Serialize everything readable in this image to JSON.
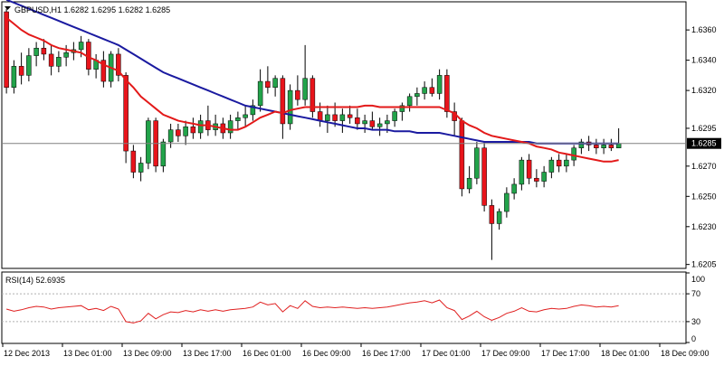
{
  "header": {
    "symbol_line": "GBPUSD,H1  1.6282 1.6295 1.6282 1.6285",
    "dropdown_icon": "triangle-down-icon"
  },
  "rsi_header": "RSI(14) 52.6935",
  "current_price_label": "1.6285",
  "colors": {
    "bull": "#22a34a",
    "bear": "#e8141b",
    "ma_fast": "#e31919",
    "ma_slow": "#1a1aa0",
    "rsi": "#e02020",
    "grid": "#c8c8c8",
    "frame": "#000000"
  },
  "chart_data": {
    "type": "candlestick",
    "symbol": "GBPUSD",
    "timeframe": "H1",
    "price_axis": {
      "range": [
        1.6203,
        1.6378
      ],
      "ticks": [
        "1.6360",
        "1.6340",
        "1.6320",
        "1.6295",
        "1.6270",
        "1.6250",
        "1.6230",
        "1.6205"
      ],
      "tick_values": [
        1.636,
        1.634,
        1.632,
        1.6295,
        1.627,
        1.625,
        1.623,
        1.6205
      ]
    },
    "time_axis": {
      "labels": [
        "12 Dec 2013",
        "13 Dec 01:00",
        "13 Dec 09:00",
        "13 Dec 17:00",
        "16 Dec 01:00",
        "16 Dec 09:00",
        "16 Dec 17:00",
        "17 Dec 01:00",
        "17 Dec 09:00",
        "17 Dec 17:00",
        "18 Dec 01:00",
        "18 Dec 09:00"
      ],
      "label_bar_index": [
        0,
        8,
        16,
        24,
        32,
        40,
        48,
        56,
        64,
        72,
        80,
        88
      ]
    },
    "last_price": 1.6285,
    "candles": [
      [
        1.6372,
        1.6374,
        1.6318,
        1.6322
      ],
      [
        1.6322,
        1.634,
        1.6318,
        1.6336
      ],
      [
        1.6336,
        1.6345,
        1.6324,
        1.633
      ],
      [
        1.633,
        1.6348,
        1.6326,
        1.6343
      ],
      [
        1.6343,
        1.6352,
        1.6336,
        1.6348
      ],
      [
        1.6348,
        1.6354,
        1.634,
        1.6344
      ],
      [
        1.6344,
        1.635,
        1.633,
        1.6336
      ],
      [
        1.6336,
        1.6346,
        1.6332,
        1.6342
      ],
      [
        1.6342,
        1.635,
        1.6336,
        1.6345
      ],
      [
        1.6345,
        1.6352,
        1.634,
        1.6347
      ],
      [
        1.6347,
        1.6356,
        1.6342,
        1.6352
      ],
      [
        1.6352,
        1.6354,
        1.633,
        1.6334
      ],
      [
        1.6334,
        1.6344,
        1.6328,
        1.634
      ],
      [
        1.634,
        1.6346,
        1.6322,
        1.6326
      ],
      [
        1.6326,
        1.6346,
        1.6322,
        1.6344
      ],
      [
        1.6344,
        1.6348,
        1.6326,
        1.633
      ],
      [
        1.633,
        1.6332,
        1.6272,
        1.628
      ],
      [
        1.628,
        1.6284,
        1.6262,
        1.6266
      ],
      [
        1.6266,
        1.6276,
        1.626,
        1.6272
      ],
      [
        1.6272,
        1.6302,
        1.6268,
        1.63
      ],
      [
        1.63,
        1.6302,
        1.6266,
        1.627
      ],
      [
        1.627,
        1.6288,
        1.6266,
        1.6286
      ],
      [
        1.6286,
        1.6298,
        1.6282,
        1.6294
      ],
      [
        1.6294,
        1.6298,
        1.6286,
        1.629
      ],
      [
        1.629,
        1.63,
        1.6284,
        1.6296
      ],
      [
        1.6296,
        1.6302,
        1.6288,
        1.6292
      ],
      [
        1.6292,
        1.6304,
        1.6288,
        1.63
      ],
      [
        1.63,
        1.631,
        1.629,
        1.6294
      ],
      [
        1.6294,
        1.6304,
        1.629,
        1.6298
      ],
      [
        1.6298,
        1.6302,
        1.6288,
        1.6292
      ],
      [
        1.6292,
        1.6304,
        1.6288,
        1.63
      ],
      [
        1.63,
        1.6306,
        1.6294,
        1.6302
      ],
      [
        1.6302,
        1.631,
        1.6296,
        1.6304
      ],
      [
        1.6304,
        1.6314,
        1.63,
        1.631
      ],
      [
        1.631,
        1.6334,
        1.6306,
        1.6326
      ],
      [
        1.6326,
        1.6336,
        1.6318,
        1.6322
      ],
      [
        1.6322,
        1.633,
        1.6316,
        1.6328
      ],
      [
        1.6328,
        1.633,
        1.6288,
        1.6298
      ],
      [
        1.6298,
        1.6324,
        1.6294,
        1.632
      ],
      [
        1.632,
        1.633,
        1.631,
        1.6314
      ],
      [
        1.6314,
        1.635,
        1.631,
        1.6328
      ],
      [
        1.6328,
        1.633,
        1.6302,
        1.6306
      ],
      [
        1.6306,
        1.6312,
        1.6296,
        1.63
      ],
      [
        1.63,
        1.631,
        1.6292,
        1.6304
      ],
      [
        1.6304,
        1.6312,
        1.6296,
        1.63
      ],
      [
        1.63,
        1.6308,
        1.6292,
        1.6304
      ],
      [
        1.6304,
        1.631,
        1.6298,
        1.6302
      ],
      [
        1.6302,
        1.6308,
        1.6294,
        1.6298
      ],
      [
        1.6298,
        1.6304,
        1.6292,
        1.63
      ],
      [
        1.63,
        1.6306,
        1.6294,
        1.6296
      ],
      [
        1.6296,
        1.6302,
        1.629,
        1.6298
      ],
      [
        1.6298,
        1.6304,
        1.6292,
        1.63
      ],
      [
        1.63,
        1.6308,
        1.6296,
        1.6306
      ],
      [
        1.6306,
        1.6312,
        1.63,
        1.631
      ],
      [
        1.631,
        1.6318,
        1.6306,
        1.6316
      ],
      [
        1.6316,
        1.6322,
        1.631,
        1.6318
      ],
      [
        1.6318,
        1.6326,
        1.6314,
        1.6322
      ],
      [
        1.6322,
        1.6328,
        1.6316,
        1.6318
      ],
      [
        1.6318,
        1.6334,
        1.6314,
        1.633
      ],
      [
        1.633,
        1.6334,
        1.6302,
        1.6306
      ],
      [
        1.6306,
        1.6312,
        1.629,
        1.63
      ],
      [
        1.63,
        1.6302,
        1.625,
        1.6255
      ],
      [
        1.6255,
        1.627,
        1.6252,
        1.6262
      ],
      [
        1.6262,
        1.6286,
        1.6258,
        1.6282
      ],
      [
        1.6282,
        1.6286,
        1.624,
        1.6244
      ],
      [
        1.6244,
        1.6248,
        1.6208,
        1.6232
      ],
      [
        1.6232,
        1.6242,
        1.6228,
        1.624
      ],
      [
        1.624,
        1.6256,
        1.6236,
        1.6252
      ],
      [
        1.6252,
        1.6262,
        1.6248,
        1.6258
      ],
      [
        1.6258,
        1.6276,
        1.6254,
        1.6274
      ],
      [
        1.6274,
        1.6278,
        1.6258,
        1.6262
      ],
      [
        1.6262,
        1.6268,
        1.6256,
        1.626
      ],
      [
        1.626,
        1.627,
        1.6256,
        1.6266
      ],
      [
        1.6266,
        1.6276,
        1.6262,
        1.6274
      ],
      [
        1.6274,
        1.6278,
        1.6266,
        1.627
      ],
      [
        1.627,
        1.6278,
        1.6266,
        1.6274
      ],
      [
        1.6274,
        1.6284,
        1.627,
        1.6282
      ],
      [
        1.6282,
        1.6288,
        1.6278,
        1.6286
      ],
      [
        1.6286,
        1.629,
        1.628,
        1.6284
      ],
      [
        1.6284,
        1.6288,
        1.6278,
        1.6282
      ],
      [
        1.6282,
        1.6288,
        1.6278,
        1.6284
      ],
      [
        1.6284,
        1.6288,
        1.628,
        1.6282
      ],
      [
        1.6282,
        1.6295,
        1.6282,
        1.6285
      ]
    ],
    "ma_fast": [
      1.6368,
      1.6364,
      1.636,
      1.6357,
      1.6355,
      1.6353,
      1.635,
      1.6348,
      1.6347,
      1.6346,
      1.6345,
      1.6342,
      1.634,
      1.6337,
      1.6335,
      1.6333,
      1.6327,
      1.6322,
      1.6316,
      1.6312,
      1.6308,
      1.6304,
      1.6302,
      1.63,
      1.6299,
      1.6298,
      1.6297,
      1.6297,
      1.6296,
      1.6295,
      1.6294,
      1.6294,
      1.6296,
      1.6299,
      1.6302,
      1.6304,
      1.6306,
      1.6305,
      1.6307,
      1.6308,
      1.6309,
      1.6309,
      1.6309,
      1.6309,
      1.6309,
      1.6309,
      1.6309,
      1.6309,
      1.631,
      1.631,
      1.6309,
      1.6309,
      1.6309,
      1.6309,
      1.6309,
      1.6309,
      1.6309,
      1.6309,
      1.6309,
      1.6307,
      1.6305,
      1.63,
      1.6297,
      1.6295,
      1.6292,
      1.629,
      1.6289,
      1.6288,
      1.6287,
      1.6286,
      1.6285,
      1.6283,
      1.6282,
      1.6281,
      1.6279,
      1.6278,
      1.6277,
      1.6276,
      1.6275,
      1.6274,
      1.6273,
      1.6273,
      1.6274
    ],
    "ma_slow": [
      1.638,
      1.6378,
      1.6376,
      1.6374,
      1.6372,
      1.637,
      1.6368,
      1.6366,
      1.6364,
      1.6362,
      1.636,
      1.6358,
      1.6356,
      1.6354,
      1.6352,
      1.635,
      1.6347,
      1.6344,
      1.6341,
      1.6338,
      1.6335,
      1.6332,
      1.633,
      1.6328,
      1.6326,
      1.6324,
      1.6322,
      1.632,
      1.6318,
      1.6316,
      1.6314,
      1.6312,
      1.631,
      1.6309,
      1.6308,
      1.6307,
      1.6306,
      1.6305,
      1.6304,
      1.6303,
      1.6302,
      1.6301,
      1.63,
      1.6299,
      1.6298,
      1.6297,
      1.6296,
      1.6295,
      1.6295,
      1.6294,
      1.6294,
      1.6294,
      1.6293,
      1.6293,
      1.6293,
      1.6292,
      1.6292,
      1.6292,
      1.6292,
      1.6291,
      1.629,
      1.6289,
      1.6288,
      1.6287,
      1.6286,
      1.6286,
      1.6286,
      1.6286,
      1.6286,
      1.6286,
      1.6286,
      1.6285,
      1.6285,
      1.6285,
      1.6285,
      1.6285,
      1.6285,
      1.6285,
      1.6285,
      1.6285,
      1.6285,
      1.6285,
      1.6285
    ],
    "rsi": {
      "period": 14,
      "value": 52.6935,
      "axis_ticks": [
        100,
        70,
        30,
        0
      ],
      "levels": [
        70,
        30
      ],
      "values": [
        48,
        45,
        47,
        50,
        52,
        51,
        48,
        50,
        51,
        52,
        53,
        47,
        49,
        46,
        52,
        48,
        30,
        28,
        31,
        42,
        34,
        40,
        44,
        43,
        46,
        44,
        47,
        45,
        47,
        45,
        47,
        48,
        49,
        51,
        58,
        54,
        56,
        44,
        53,
        49,
        60,
        52,
        50,
        51,
        50,
        51,
        50,
        49,
        50,
        49,
        50,
        51,
        53,
        55,
        57,
        58,
        60,
        57,
        61,
        50,
        46,
        33,
        38,
        45,
        37,
        32,
        36,
        42,
        45,
        50,
        45,
        44,
        47,
        49,
        48,
        49,
        52,
        54,
        53,
        51,
        52,
        51,
        53
      ]
    }
  }
}
